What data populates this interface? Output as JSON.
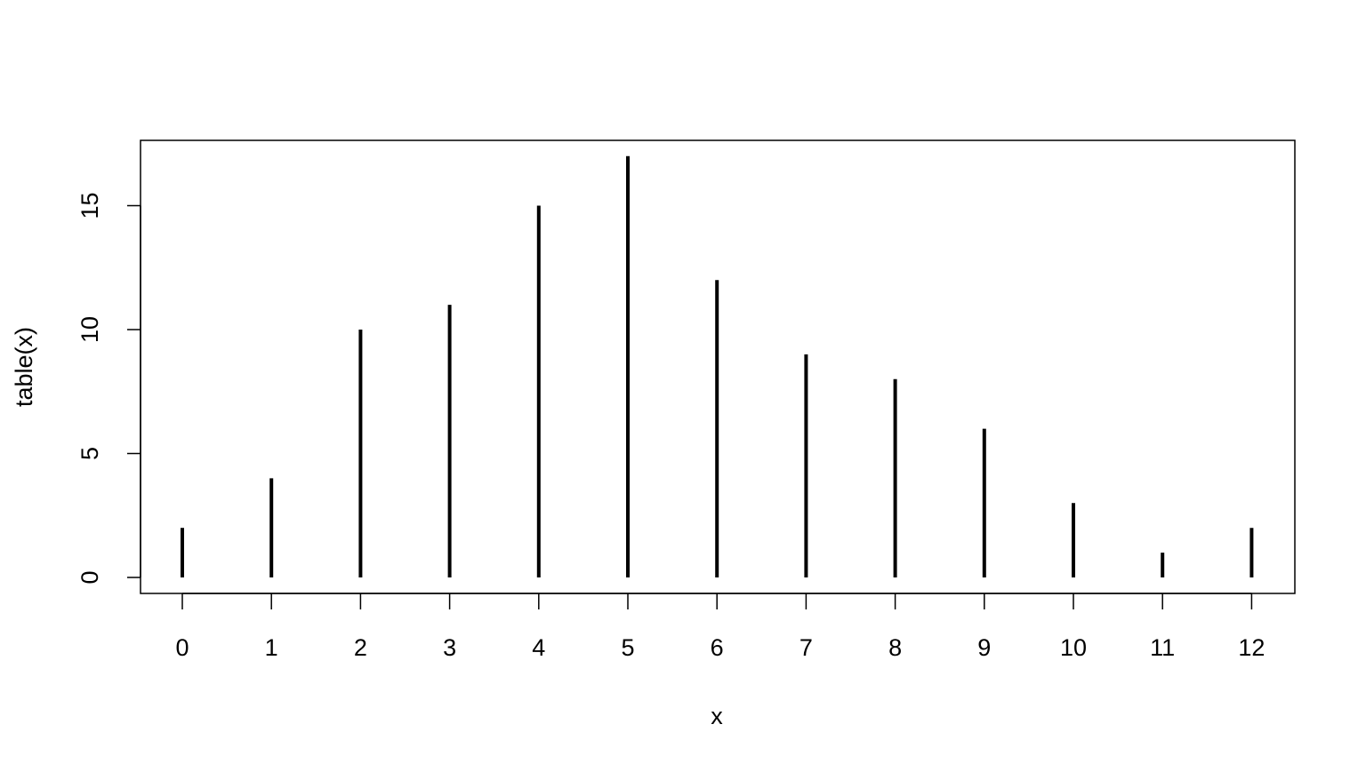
{
  "chart_data": {
    "type": "bar",
    "title": "",
    "xlabel": "x",
    "ylabel": "table(x)",
    "categories": [
      "0",
      "1",
      "2",
      "3",
      "4",
      "5",
      "6",
      "7",
      "8",
      "9",
      "10",
      "11",
      "12"
    ],
    "values": [
      2,
      4,
      10,
      11,
      15,
      17,
      12,
      9,
      8,
      6,
      3,
      1,
      2
    ],
    "ylim": [
      0,
      17
    ],
    "y_ticks": [
      "0",
      "5",
      "10",
      "15"
    ],
    "grid": false,
    "legend": "none",
    "color": "#000000"
  }
}
